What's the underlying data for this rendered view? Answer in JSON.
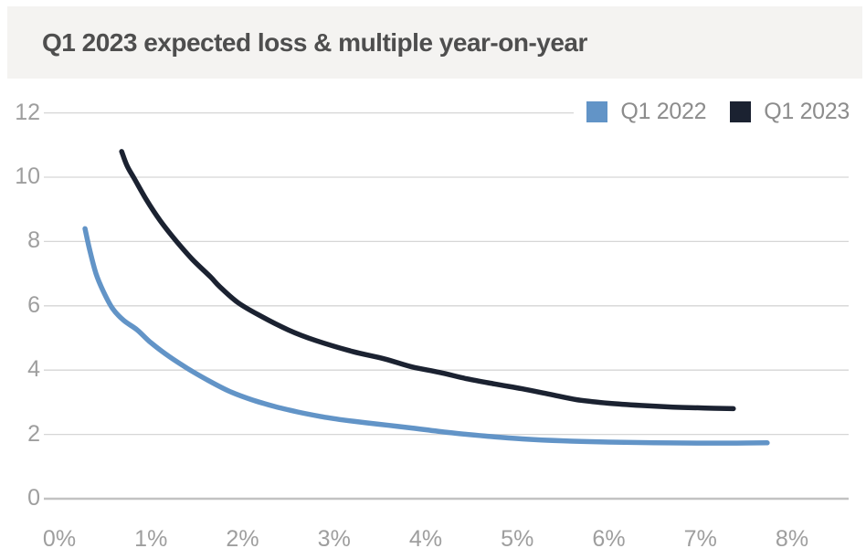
{
  "header": {
    "title": "Q1 2023 expected loss & multiple year-on-year"
  },
  "legend": {
    "items": [
      {
        "label": "Q1 2022",
        "color": "#6294c7"
      },
      {
        "label": "Q1 2023",
        "color": "#1b2231"
      }
    ]
  },
  "colors": {
    "header_bg": "#f4f3f1",
    "title_text": "#4e4e4e",
    "tick_text": "#9e9e9e",
    "legend_text": "#8c8c8c",
    "gridline": "#d6d6d6",
    "axis_line": "#c2c2c2",
    "series_q1_2022": "#6294c7",
    "series_q1_2023": "#1b2231"
  },
  "chart_data": {
    "type": "line",
    "title": "Q1 2023 expected loss & multiple year-on-year",
    "xlabel": "",
    "ylabel": "",
    "xlim_percent": [
      0,
      8
    ],
    "ylim": [
      0,
      12
    ],
    "x_tick_labels": [
      "0%",
      "1%",
      "2%",
      "3%",
      "4%",
      "5%",
      "6%",
      "7%",
      "8%"
    ],
    "y_tick_values": [
      0,
      2,
      4,
      6,
      8,
      10,
      12
    ],
    "grid": "horizontal",
    "legend_position": "top-right",
    "series": [
      {
        "name": "Q1 2022",
        "color": "#6294c7",
        "points": [
          [
            0.28,
            8.4
          ],
          [
            0.33,
            7.75
          ],
          [
            0.4,
            7.0
          ],
          [
            0.48,
            6.45
          ],
          [
            0.58,
            5.92
          ],
          [
            0.7,
            5.55
          ],
          [
            0.85,
            5.25
          ],
          [
            1.0,
            4.85
          ],
          [
            1.2,
            4.42
          ],
          [
            1.4,
            4.05
          ],
          [
            1.6,
            3.72
          ],
          [
            1.85,
            3.35
          ],
          [
            2.1,
            3.08
          ],
          [
            2.35,
            2.87
          ],
          [
            2.6,
            2.7
          ],
          [
            2.85,
            2.56
          ],
          [
            3.1,
            2.45
          ],
          [
            3.35,
            2.36
          ],
          [
            3.6,
            2.28
          ],
          [
            3.85,
            2.2
          ],
          [
            4.25,
            2.06
          ],
          [
            4.65,
            1.95
          ],
          [
            5.05,
            1.86
          ],
          [
            5.5,
            1.8
          ],
          [
            6.0,
            1.76
          ],
          [
            6.5,
            1.74
          ],
          [
            7.0,
            1.73
          ],
          [
            7.4,
            1.73
          ],
          [
            7.73,
            1.74
          ]
        ]
      },
      {
        "name": "Q1 2023",
        "color": "#1b2231",
        "points": [
          [
            0.68,
            10.8
          ],
          [
            0.74,
            10.35
          ],
          [
            0.82,
            9.95
          ],
          [
            0.95,
            9.3
          ],
          [
            1.1,
            8.65
          ],
          [
            1.28,
            8.0
          ],
          [
            1.45,
            7.45
          ],
          [
            1.65,
            6.9
          ],
          [
            1.75,
            6.6
          ],
          [
            1.95,
            6.1
          ],
          [
            2.2,
            5.68
          ],
          [
            2.5,
            5.25
          ],
          [
            2.8,
            4.92
          ],
          [
            3.2,
            4.58
          ],
          [
            3.55,
            4.35
          ],
          [
            3.85,
            4.1
          ],
          [
            4.15,
            3.93
          ],
          [
            4.45,
            3.73
          ],
          [
            4.75,
            3.57
          ],
          [
            5.05,
            3.42
          ],
          [
            5.35,
            3.25
          ],
          [
            5.65,
            3.08
          ],
          [
            6.0,
            2.97
          ],
          [
            6.35,
            2.9
          ],
          [
            6.7,
            2.85
          ],
          [
            7.05,
            2.82
          ],
          [
            7.36,
            2.8
          ]
        ]
      }
    ]
  }
}
